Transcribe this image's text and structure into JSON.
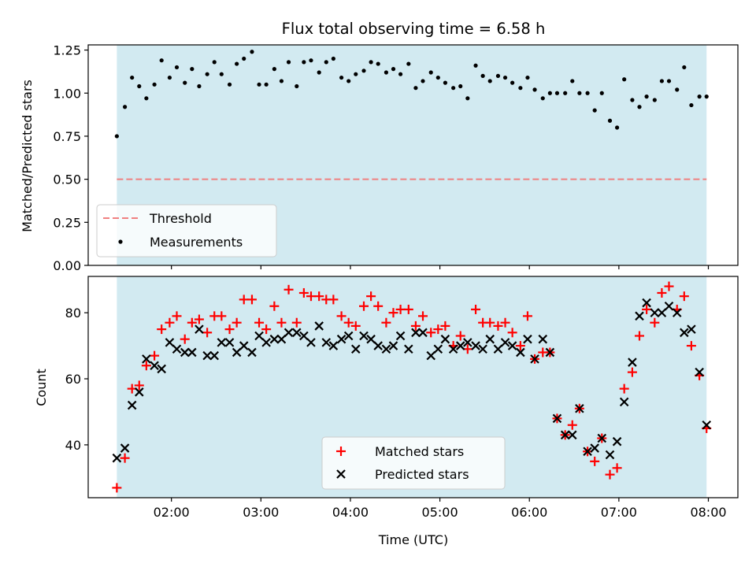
{
  "chart_data": [
    {
      "type": "scatter",
      "title": "Flux total observing time = 6.58 h",
      "xlabel": "",
      "ylabel": "Matched/Predicted stars",
      "ylim": [
        0,
        1.28
      ],
      "yticks": [
        0,
        0.25,
        0.5,
        0.75,
        1.0,
        1.25
      ],
      "ytick_labels": [
        "0.00",
        "0.25",
        "0.50",
        "0.75",
        "1.00",
        "1.25"
      ],
      "xlim": [
        1.07,
        8.33
      ],
      "xticks": [
        2,
        3,
        4,
        5,
        6,
        7,
        8
      ],
      "xtick_labels": [
        "02:00",
        "03:00",
        "04:00",
        "05:00",
        "06:00",
        "07:00",
        "08:00"
      ],
      "show_xtick_labels": false,
      "shade": {
        "x0": 1.39,
        "x1": 7.98,
        "color": "#add8e6"
      },
      "threshold": {
        "name": "Threshold",
        "y": 0.5,
        "color": "#f08080"
      },
      "legend": {
        "placement": "lower-left",
        "entries": [
          "Threshold",
          "Measurements"
        ]
      },
      "series": [
        {
          "name": "Measurements",
          "marker": "dot",
          "color": "#000000",
          "x": [
            1.39,
            1.48,
            1.56,
            1.64,
            1.72,
            1.81,
            1.89,
            1.98,
            2.06,
            2.15,
            2.23,
            2.31,
            2.4,
            2.48,
            2.56,
            2.65,
            2.73,
            2.81,
            2.9,
            2.98,
            3.06,
            3.15,
            3.23,
            3.31,
            3.4,
            3.48,
            3.56,
            3.65,
            3.73,
            3.81,
            3.9,
            3.98,
            4.06,
            4.15,
            4.23,
            4.31,
            4.4,
            4.48,
            4.56,
            4.65,
            4.73,
            4.81,
            4.9,
            4.98,
            5.06,
            5.15,
            5.23,
            5.31,
            5.4,
            5.48,
            5.56,
            5.65,
            5.73,
            5.81,
            5.9,
            5.98,
            6.06,
            6.15,
            6.23,
            6.31,
            6.4,
            6.48,
            6.56,
            6.65,
            6.73,
            6.81,
            6.9,
            6.98,
            7.06,
            7.15,
            7.23,
            7.31,
            7.4,
            7.48,
            7.56,
            7.65,
            7.73,
            7.81,
            7.9,
            7.98
          ],
          "y": [
            0.75,
            0.92,
            1.09,
            1.04,
            0.97,
            1.05,
            1.19,
            1.09,
            1.15,
            1.06,
            1.14,
            1.04,
            1.11,
            1.18,
            1.11,
            1.05,
            1.17,
            1.2,
            1.24,
            1.05,
            1.05,
            1.14,
            1.07,
            1.18,
            1.04,
            1.18,
            1.19,
            1.12,
            1.18,
            1.2,
            1.09,
            1.07,
            1.11,
            1.13,
            1.18,
            1.17,
            1.12,
            1.14,
            1.11,
            1.17,
            1.03,
            1.07,
            1.12,
            1.09,
            1.06,
            1.03,
            1.04,
            0.97,
            1.16,
            1.1,
            1.07,
            1.1,
            1.09,
            1.06,
            1.03,
            1.09,
            1.02,
            0.97,
            1.0,
            1.0,
            1.0,
            1.07,
            1.0,
            1.0,
            0.9,
            1.0,
            0.84,
            0.8,
            1.08,
            0.96,
            0.92,
            0.98,
            0.96,
            1.07,
            1.07,
            1.02,
            1.15,
            0.93,
            0.98,
            0.98
          ]
        }
      ]
    },
    {
      "type": "scatter",
      "title": "",
      "xlabel": "Time (UTC)",
      "ylabel": "Count",
      "ylim": [
        24,
        91
      ],
      "yticks": [
        40,
        60,
        80
      ],
      "ytick_labels": [
        "40",
        "60",
        "80"
      ],
      "xlim": [
        1.07,
        8.33
      ],
      "xticks": [
        2,
        3,
        4,
        5,
        6,
        7,
        8
      ],
      "xtick_labels": [
        "02:00",
        "03:00",
        "04:00",
        "05:00",
        "06:00",
        "07:00",
        "08:00"
      ],
      "show_xtick_labels": true,
      "shade": {
        "x0": 1.39,
        "x1": 7.98,
        "color": "#add8e6"
      },
      "legend": {
        "placement": "lower-center",
        "entries": [
          "Matched stars",
          "Predicted stars"
        ]
      },
      "series": [
        {
          "name": "Matched stars",
          "marker": "plus",
          "color": "#ff0000",
          "x": [
            1.39,
            1.48,
            1.56,
            1.64,
            1.72,
            1.81,
            1.89,
            1.98,
            2.06,
            2.15,
            2.23,
            2.31,
            2.4,
            2.48,
            2.56,
            2.65,
            2.73,
            2.81,
            2.9,
            2.98,
            3.06,
            3.15,
            3.23,
            3.31,
            3.4,
            3.48,
            3.56,
            3.65,
            3.73,
            3.81,
            3.9,
            3.98,
            4.06,
            4.15,
            4.23,
            4.31,
            4.4,
            4.48,
            4.56,
            4.65,
            4.73,
            4.81,
            4.9,
            4.98,
            5.06,
            5.15,
            5.23,
            5.31,
            5.4,
            5.48,
            5.56,
            5.65,
            5.73,
            5.81,
            5.9,
            5.98,
            6.06,
            6.15,
            6.23,
            6.31,
            6.4,
            6.48,
            6.56,
            6.65,
            6.73,
            6.81,
            6.9,
            6.98,
            7.06,
            7.15,
            7.23,
            7.31,
            7.4,
            7.48,
            7.56,
            7.65,
            7.73,
            7.81,
            7.9,
            7.98
          ],
          "y": [
            27,
            36,
            57,
            58,
            64,
            67,
            75,
            77,
            79,
            72,
            77,
            78,
            74,
            79,
            79,
            75,
            77,
            84,
            84,
            77,
            75,
            82,
            77,
            87,
            77,
            86,
            85,
            85,
            84,
            84,
            79,
            77,
            76,
            82,
            85,
            82,
            77,
            80,
            81,
            81,
            76,
            79,
            74,
            75,
            76,
            70,
            73,
            69,
            81,
            77,
            77,
            76,
            77,
            74,
            70,
            79,
            66,
            68,
            68,
            48,
            43,
            46,
            51,
            38,
            35,
            42,
            31,
            33,
            57,
            62,
            73,
            81,
            77,
            86,
            88,
            81,
            85,
            70,
            61,
            45
          ]
        },
        {
          "name": "Predicted stars",
          "marker": "x",
          "color": "#000000",
          "x": [
            1.39,
            1.48,
            1.56,
            1.64,
            1.72,
            1.81,
            1.89,
            1.98,
            2.06,
            2.15,
            2.23,
            2.31,
            2.4,
            2.48,
            2.56,
            2.65,
            2.73,
            2.81,
            2.9,
            2.98,
            3.06,
            3.15,
            3.23,
            3.31,
            3.4,
            3.48,
            3.56,
            3.65,
            3.73,
            3.81,
            3.9,
            3.98,
            4.06,
            4.15,
            4.23,
            4.31,
            4.4,
            4.48,
            4.56,
            4.65,
            4.73,
            4.81,
            4.9,
            4.98,
            5.06,
            5.15,
            5.23,
            5.31,
            5.4,
            5.48,
            5.56,
            5.65,
            5.73,
            5.81,
            5.9,
            5.98,
            6.06,
            6.15,
            6.23,
            6.31,
            6.4,
            6.48,
            6.56,
            6.65,
            6.73,
            6.81,
            6.9,
            6.98,
            7.06,
            7.15,
            7.23,
            7.31,
            7.4,
            7.48,
            7.56,
            7.65,
            7.73,
            7.81,
            7.9,
            7.98
          ],
          "y": [
            36,
            39,
            52,
            56,
            66,
            64,
            63,
            71,
            69,
            68,
            68,
            75,
            67,
            67,
            71,
            71,
            68,
            70,
            68,
            73,
            71,
            72,
            72,
            74,
            74,
            73,
            71,
            76,
            71,
            70,
            72,
            73,
            69,
            73,
            72,
            70,
            69,
            70,
            73,
            69,
            74,
            74,
            67,
            69,
            72,
            69,
            70,
            71,
            70,
            69,
            72,
            69,
            71,
            70,
            68,
            72,
            66,
            72,
            68,
            48,
            43,
            43,
            51,
            38,
            39,
            42,
            37,
            41,
            53,
            65,
            79,
            83,
            80,
            80,
            82,
            80,
            74,
            75,
            62,
            46
          ]
        }
      ]
    }
  ]
}
